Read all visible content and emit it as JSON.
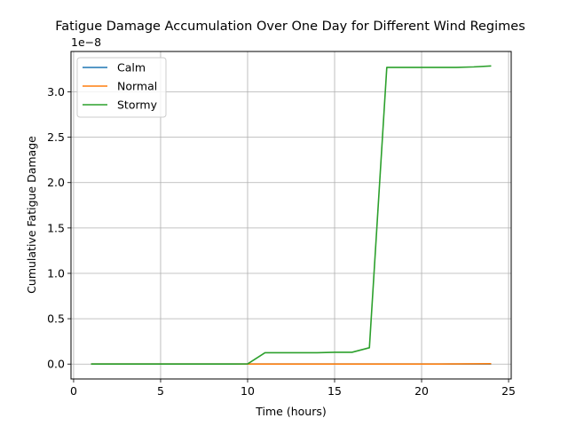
{
  "chart_data": {
    "type": "line",
    "title": "Fatigue Damage Accumulation Over One Day for Different Wind Regimes",
    "xlabel": "Time (hours)",
    "ylabel": "Cumulative Fatigue Damage",
    "y_offset_label": "1e−8",
    "y_scale": 1e-08,
    "xlim": [
      -0.15,
      25.15
    ],
    "ylim": [
      -0.164,
      3.445
    ],
    "x_ticks": [
      0,
      5,
      10,
      15,
      20,
      25
    ],
    "x_tick_labels": [
      "0",
      "5",
      "10",
      "15",
      "20",
      "25"
    ],
    "y_ticks": [
      0.0,
      0.5,
      1.0,
      1.5,
      2.0,
      2.5,
      3.0
    ],
    "y_tick_labels": [
      "0.0",
      "0.5",
      "1.0",
      "1.5",
      "2.0",
      "2.5",
      "3.0"
    ],
    "grid": true,
    "legend_position": "top-left",
    "x": [
      1,
      2,
      3,
      4,
      5,
      6,
      7,
      8,
      9,
      10,
      11,
      12,
      13,
      14,
      15,
      16,
      17,
      18,
      19,
      20,
      21,
      22,
      23,
      24
    ],
    "series": [
      {
        "name": "Calm",
        "color": "#1f77b4",
        "values": [
          0,
          0,
          0,
          0,
          0,
          0,
          0,
          0,
          0,
          0,
          0,
          0,
          0,
          0,
          0,
          0,
          0,
          0,
          0,
          0,
          0,
          0,
          0,
          0
        ]
      },
      {
        "name": "Normal",
        "color": "#ff7f0e",
        "values": [
          0,
          0,
          0,
          0,
          0,
          0,
          0,
          0,
          0,
          0,
          0,
          0,
          0,
          0,
          0,
          0,
          0,
          0,
          0,
          0,
          0,
          0.002,
          0.003,
          0.004
        ]
      },
      {
        "name": "Stormy",
        "color": "#2ca02c",
        "values": [
          0,
          0,
          0,
          0,
          0,
          0,
          0,
          0,
          0,
          0.002,
          0.125,
          0.125,
          0.125,
          0.125,
          0.13,
          0.13,
          0.18,
          3.27,
          3.27,
          3.27,
          3.27,
          3.27,
          3.275,
          3.285
        ]
      }
    ]
  }
}
